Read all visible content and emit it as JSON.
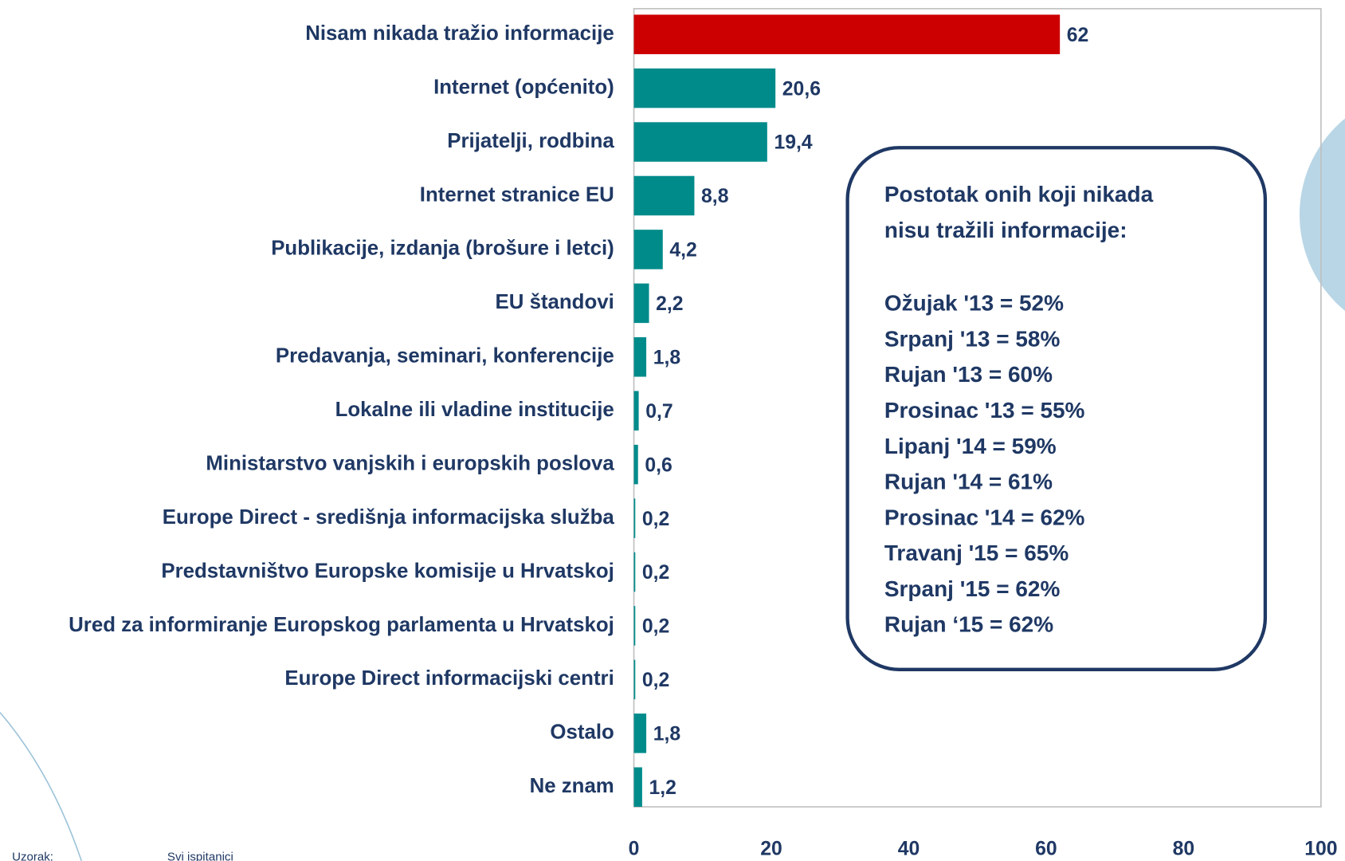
{
  "chart_data": {
    "type": "bar",
    "orientation": "horizontal",
    "categories": [
      "Nisam nikada tražio informacije",
      "Internet (općenito)",
      "Prijatelji, rodbina",
      "Internet stranice EU",
      "Publikacije, izdanja (brošure i letci)",
      "EU štandovi",
      "Predavanja, seminari, konferencije",
      "Lokalne ili vladine institucije",
      "Ministarstvo vanjskih i europskih poslova",
      "Europe Direct - središnja informacijska služba",
      "Predstavništvo Europske komisije u Hrvatskoj",
      "Ured za informiranje Europskog parlamenta u Hrvatskoj",
      "Europe Direct informacijski centri",
      "Ostalo",
      "Ne znam"
    ],
    "values": [
      62,
      20.6,
      19.4,
      8.8,
      4.2,
      2.2,
      1.8,
      0.7,
      0.6,
      0.2,
      0.2,
      0.2,
      0.2,
      1.8,
      1.2
    ],
    "value_labels": [
      "62",
      "20,6",
      "19,4",
      "8,8",
      "4,2",
      "2,2",
      "1,8",
      "0,7",
      "0,6",
      "0,2",
      "0,2",
      "0,2",
      "0,2",
      "1,8",
      "1,2"
    ],
    "colors": [
      "#cc0000",
      "#008b8b",
      "#008b8b",
      "#008b8b",
      "#008b8b",
      "#008b8b",
      "#008b8b",
      "#008b8b",
      "#008b8b",
      "#008b8b",
      "#008b8b",
      "#008b8b",
      "#008b8b",
      "#008b8b",
      "#008b8b"
    ],
    "xlim": [
      0,
      100
    ],
    "xticks": [
      0,
      20,
      40,
      60,
      80,
      100
    ],
    "grid": false,
    "annotation": {
      "title": [
        "Postotak onih koji nikada",
        "nisu tražili informacije:"
      ],
      "lines": [
        "Ožujak '13 = 52%",
        "Srpanj '13 = 58%",
        "Rujan '13 = 60%",
        "Prosinac '13 = 55%",
        "Lipanj '14 = 59%",
        "Rujan '14 = 61%",
        "Prosinac '14 = 62%",
        "Travanj '15 = 65%",
        "Srpanj '15 = 62%",
        "Rujan ‘15 = 62%"
      ]
    },
    "footer": [
      "Uzorak:",
      "Svi ispitanici"
    ]
  }
}
